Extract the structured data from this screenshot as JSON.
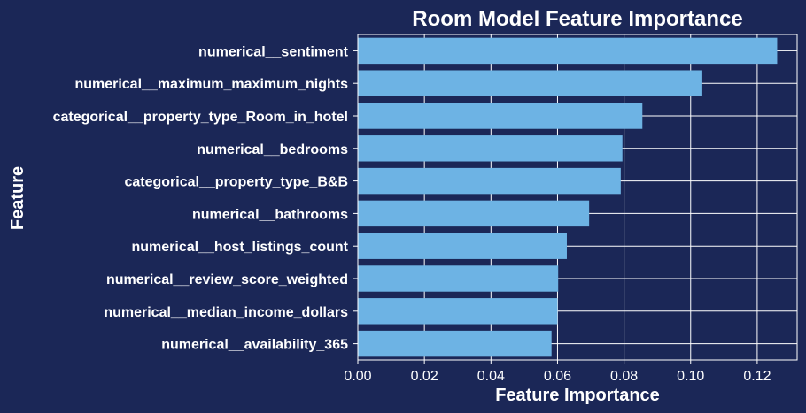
{
  "colors": {
    "background": "#1b2757",
    "bar": "#6db3e4",
    "grid": "#ffffff",
    "text": "#ffffff"
  },
  "chart_data": {
    "type": "bar",
    "orientation": "horizontal",
    "title": "Room Model Feature Importance",
    "xlabel": "Feature Importance",
    "ylabel": "Feature",
    "grid": true,
    "xlim": [
      0,
      0.132
    ],
    "xticks": [
      0.0,
      0.02,
      0.04,
      0.06,
      0.08,
      0.1,
      0.12
    ],
    "xtick_labels": [
      "0.00",
      "0.02",
      "0.04",
      "0.06",
      "0.08",
      "0.10",
      "0.12"
    ],
    "categories": [
      "numerical__sentiment",
      "numerical__maximum_maximum_nights",
      "categorical__property_type_Room_in_hotel",
      "numerical__bedrooms",
      "categorical__property_type_B&B",
      "numerical__bathrooms",
      "numerical__host_listings_count",
      "numerical__review_score_weighted",
      "numerical__median_income_dollars",
      "numerical__availability_365"
    ],
    "values": [
      0.126,
      0.1035,
      0.0855,
      0.0795,
      0.079,
      0.0695,
      0.0628,
      0.0602,
      0.06,
      0.0582
    ]
  }
}
